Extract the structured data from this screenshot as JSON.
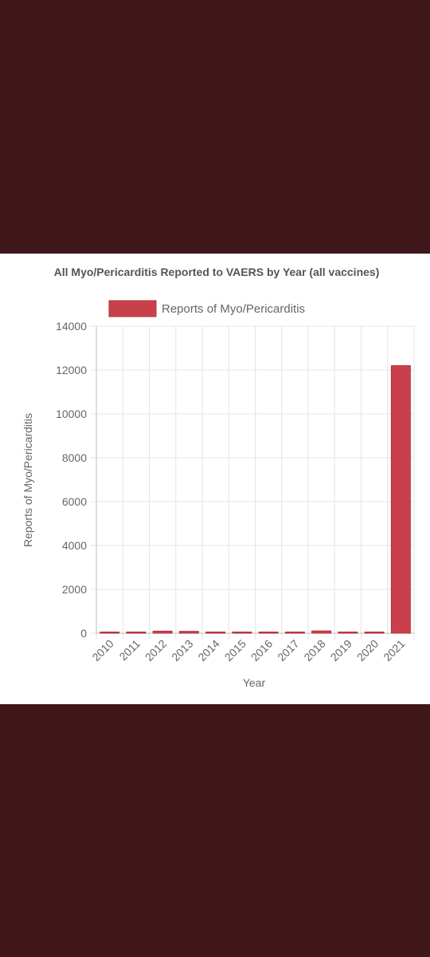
{
  "colors": {
    "background": "#3f171a",
    "panel": "#ffffff",
    "bar": "#c9404b",
    "bar_border": "#b3303b"
  },
  "chart_data": {
    "type": "bar",
    "title": "All Myo/Pericarditis Reported to VAERS by Year (all vaccines)",
    "xlabel": "Year",
    "ylabel": "Reports of Myo/Pericarditis",
    "categories": [
      "2010",
      "2011",
      "2012",
      "2013",
      "2014",
      "2015",
      "2016",
      "2017",
      "2018",
      "2019",
      "2020",
      "2021"
    ],
    "series": [
      {
        "name": "Reports of Myo/Pericarditis",
        "values": [
          45,
          50,
          95,
          85,
          45,
          15,
          30,
          50,
          105,
          45,
          35,
          12200
        ]
      }
    ],
    "ylim": [
      0,
      14000
    ],
    "yticks": [
      "0",
      "2000",
      "4000",
      "6000",
      "8000",
      "10000",
      "12000",
      "14000"
    ],
    "grid": true,
    "legend": "top"
  }
}
